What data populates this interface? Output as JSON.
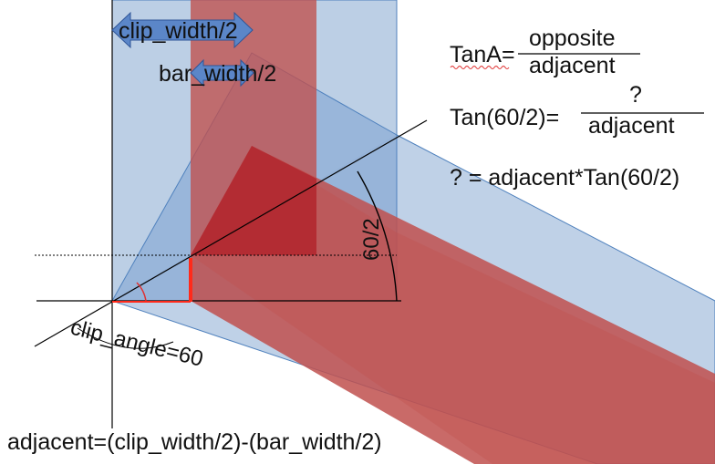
{
  "labels": {
    "clip_width_half": "clip_width/2",
    "bar_width_half": "bar_width/2",
    "angle_half": "60/2",
    "clip_angle": "clip_angle=60",
    "adjacent_formula": "adjacent=(clip_width/2)-(bar_width/2)"
  },
  "formulas": {
    "tan_lhs": "TanA=",
    "tan_numerator": "opposite",
    "tan_denominator": "adjacent",
    "tan60_lhs": "Tan(60/2)=",
    "tan60_numerator": "?",
    "tan60_denominator": "adjacent",
    "result": "? = adjacent*Tan(60/2)"
  },
  "colors": {
    "clip_fill": "#b8cce4",
    "clip_stroke": "#4f81bd",
    "bar_fill": "#c0504d",
    "highlight_fill": "#b22a32",
    "arrow_fill": "#5b86c8",
    "marker_red": "#ff2a1a",
    "axis_line": "#000000"
  }
}
